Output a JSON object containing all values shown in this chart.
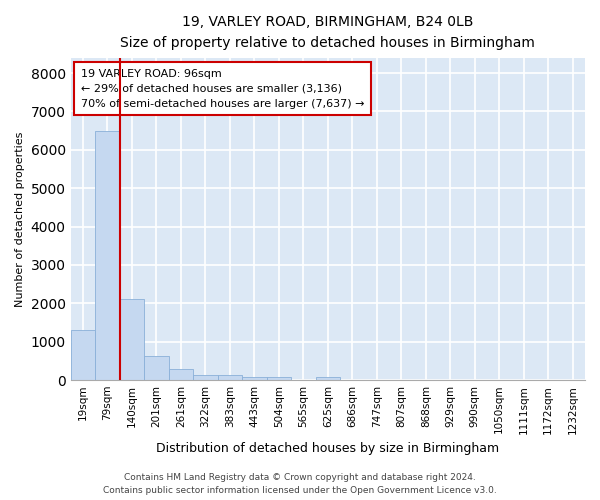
{
  "title_line1": "19, VARLEY ROAD, BIRMINGHAM, B24 0LB",
  "title_line2": "Size of property relative to detached houses in Birmingham",
  "xlabel": "Distribution of detached houses by size in Birmingham",
  "ylabel": "Number of detached properties",
  "footer_line1": "Contains HM Land Registry data © Crown copyright and database right 2024.",
  "footer_line2": "Contains public sector information licensed under the Open Government Licence v3.0.",
  "annotation_title": "19 VARLEY ROAD: 96sqm",
  "annotation_line1": "← 29% of detached houses are smaller (3,136)",
  "annotation_line2": "70% of semi-detached houses are larger (7,637) →",
  "bar_color": "#c5d8f0",
  "bar_edge_color": "#8ab0d8",
  "bg_color": "#dce8f5",
  "grid_color": "#ffffff",
  "red_line_color": "#cc0000",
  "annotation_box_edge": "#cc0000",
  "categories": [
    "19sqm",
    "79sqm",
    "140sqm",
    "201sqm",
    "261sqm",
    "322sqm",
    "383sqm",
    "443sqm",
    "504sqm",
    "565sqm",
    "625sqm",
    "686sqm",
    "747sqm",
    "807sqm",
    "868sqm",
    "929sqm",
    "990sqm",
    "1050sqm",
    "1111sqm",
    "1172sqm",
    "1232sqm"
  ],
  "values": [
    1300,
    6500,
    2100,
    620,
    300,
    130,
    130,
    80,
    80,
    0,
    80,
    0,
    0,
    0,
    0,
    0,
    0,
    0,
    0,
    0,
    0
  ],
  "red_line_x": 1.5,
  "ylim": [
    0,
    8400
  ],
  "yticks": [
    0,
    1000,
    2000,
    3000,
    4000,
    5000,
    6000,
    7000,
    8000
  ]
}
